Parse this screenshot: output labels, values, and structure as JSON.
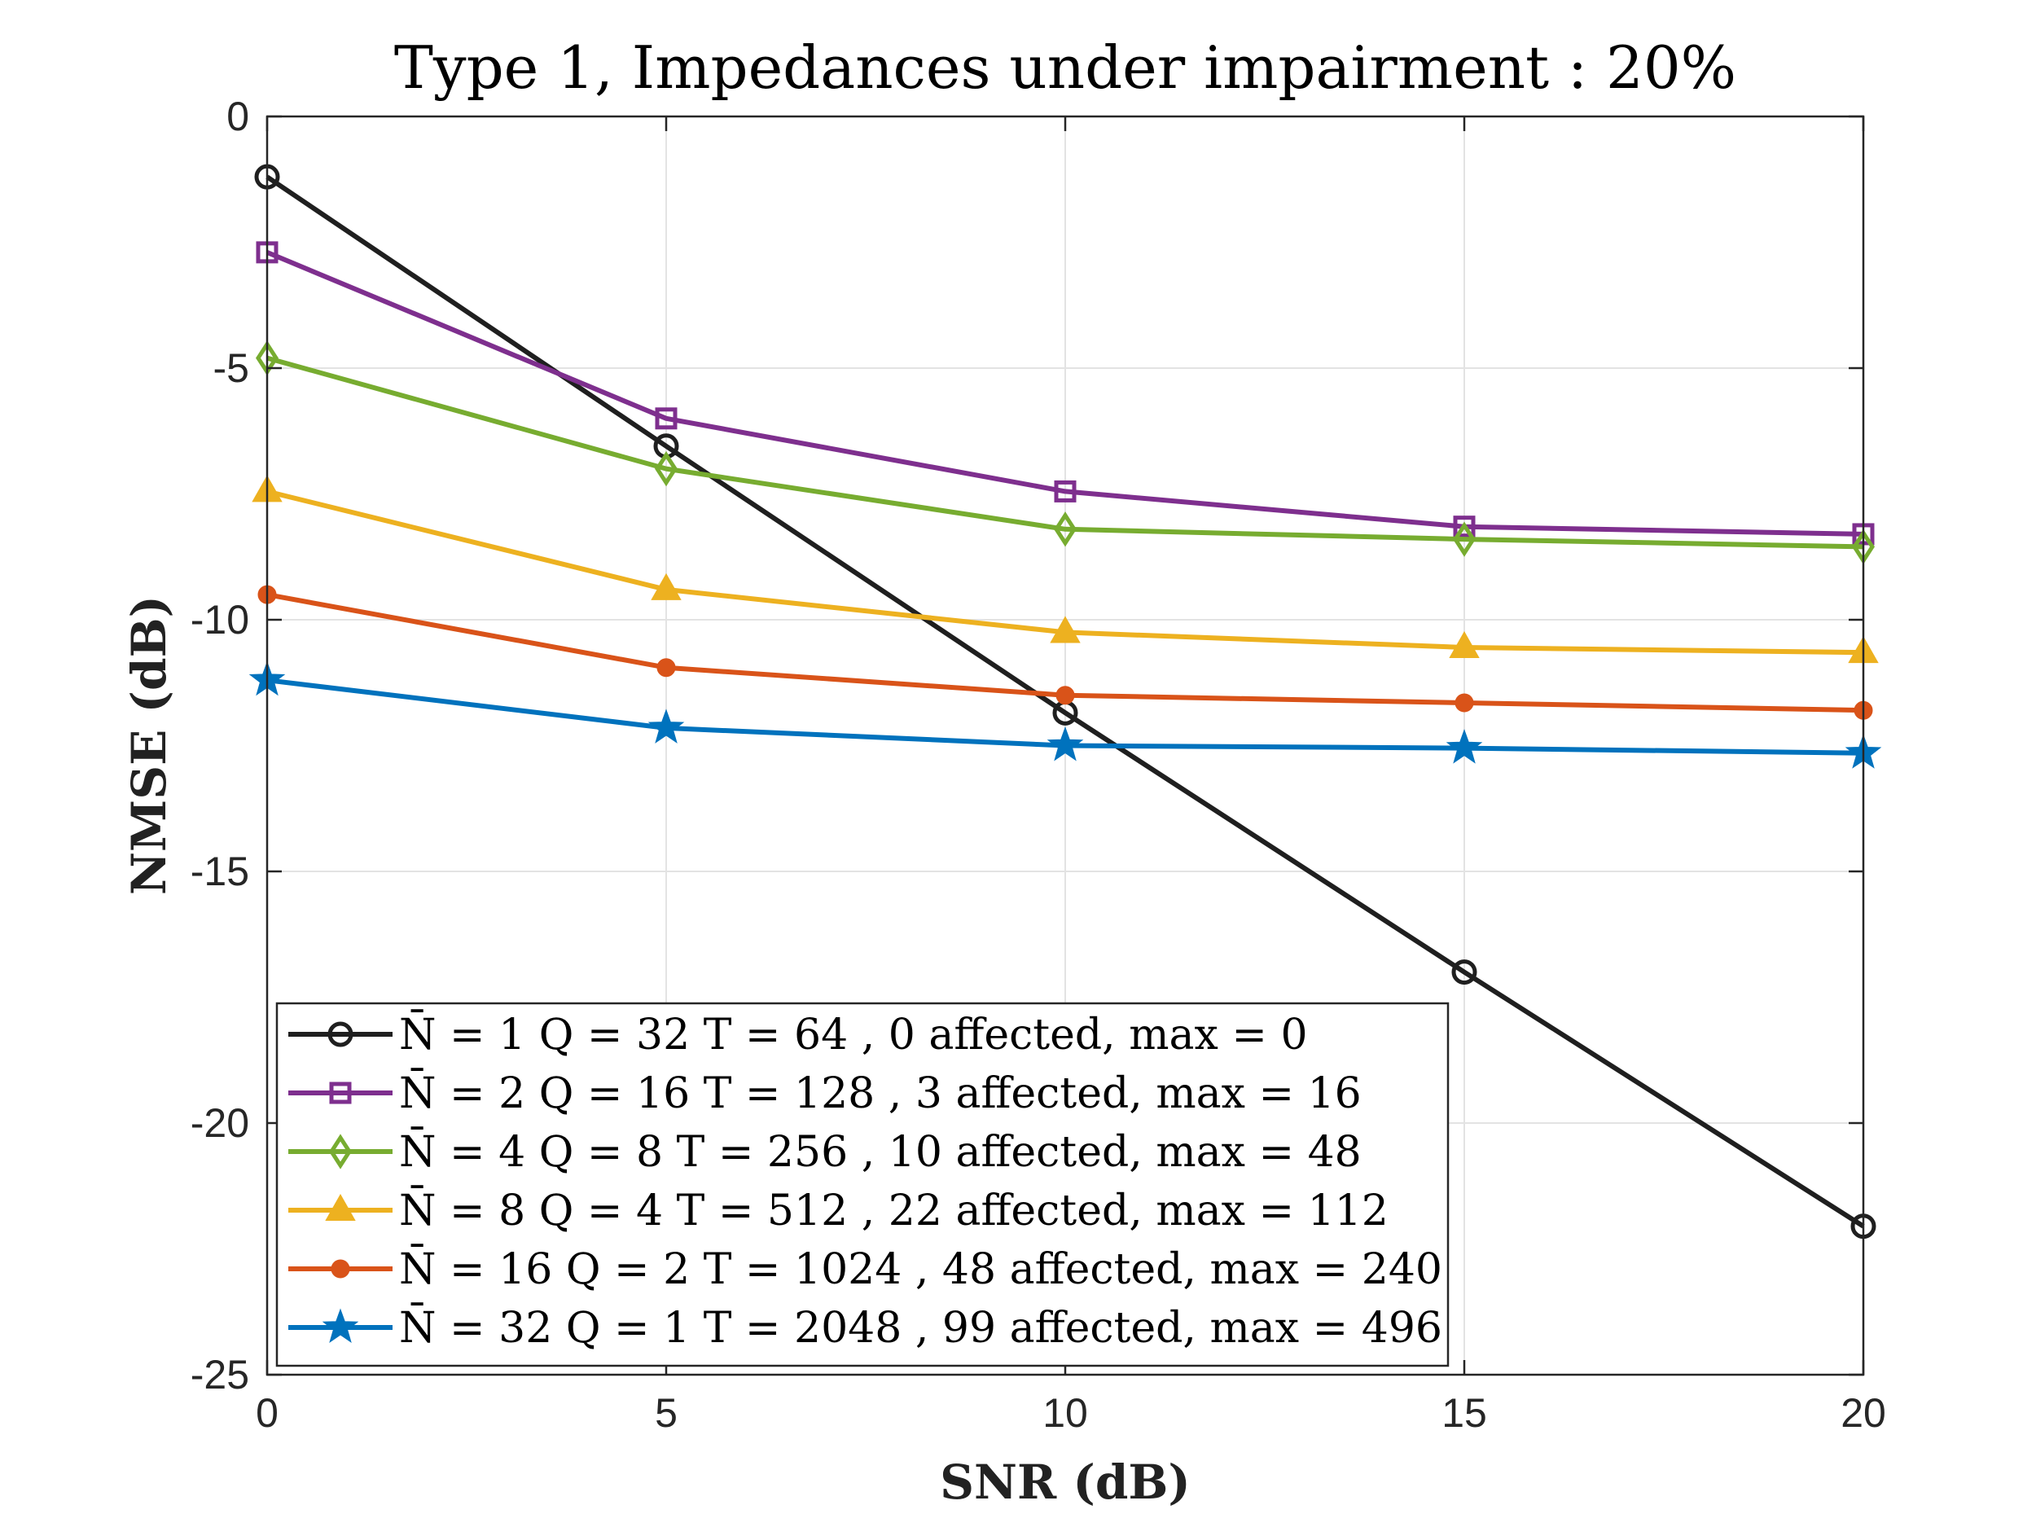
{
  "chart_data": {
    "type": "line",
    "title": "Type 1, Impedances under impairment : 20%",
    "xlabel": "SNR (dB)",
    "ylabel": "NMSE (dB)",
    "xlim": [
      0,
      20
    ],
    "ylim": [
      -25,
      0
    ],
    "xticks": [
      0,
      5,
      10,
      15,
      20
    ],
    "yticks": [
      0,
      -5,
      -10,
      -15,
      -20,
      -25
    ],
    "grid": true,
    "legend_position": "bottom-left",
    "x": [
      0,
      5,
      10,
      15,
      20
    ],
    "series": [
      {
        "name": "N̄ = 1 Q = 32 T = 64 , 0 affected, max = 0",
        "color": "#1f1f1f",
        "marker": "circle",
        "values": [
          -1.2,
          -6.55,
          -11.85,
          -17.0,
          -22.05
        ]
      },
      {
        "name": "N̄ = 2 Q = 16 T = 128 , 3 affected, max = 16",
        "color": "#7e2f8e",
        "marker": "square",
        "values": [
          -2.7,
          -6.0,
          -7.45,
          -8.15,
          -8.3
        ]
      },
      {
        "name": "N̄ = 4 Q = 8 T = 256 , 10 affected, max = 48",
        "color": "#77ac30",
        "marker": "diamond",
        "values": [
          -4.8,
          -7.0,
          -8.2,
          -8.4,
          -8.55
        ]
      },
      {
        "name": "N̄ = 8 Q = 4 T = 512 , 22 affected, max = 112",
        "color": "#edb120",
        "marker": "triangle",
        "values": [
          -7.45,
          -9.4,
          -10.25,
          -10.55,
          -10.65
        ]
      },
      {
        "name": "N̄ = 16 Q = 2 T = 1024 , 48 affected, max = 240",
        "color": "#d95319",
        "marker": "dot",
        "values": [
          -9.5,
          -10.95,
          -11.5,
          -11.65,
          -11.8
        ]
      },
      {
        "name": "N̄ = 32 Q = 1 T = 2048 , 99 affected, max = 496",
        "color": "#0072bd",
        "marker": "star",
        "values": [
          -11.2,
          -12.15,
          -12.5,
          -12.55,
          -12.65
        ]
      }
    ]
  }
}
